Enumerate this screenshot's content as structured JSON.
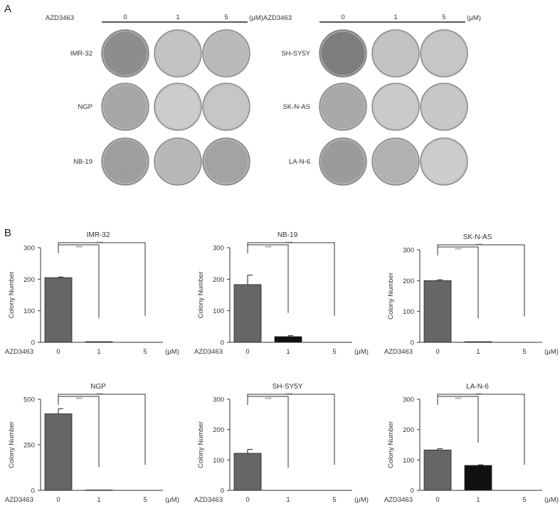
{
  "panel_a": {
    "label": "A",
    "groups": [
      {
        "drug": "AZD3463",
        "doses": [
          "0",
          "1",
          "5"
        ],
        "unit": "(μM)",
        "cell_lines": [
          "IMR-32",
          "NGP",
          "NB-19"
        ],
        "dish_intensity": [
          [
            0.78,
            0.3,
            0.38
          ],
          [
            0.55,
            0.22,
            0.28
          ],
          [
            0.62,
            0.4,
            0.58
          ]
        ]
      },
      {
        "drug": "AZD3463",
        "doses": [
          "0",
          "1",
          "5"
        ],
        "unit": "(μM)",
        "cell_lines": [
          "SH-SY5Y",
          "SK-N-AS",
          "LA-N-6"
        ],
        "dish_intensity": [
          [
            0.92,
            0.3,
            0.28
          ],
          [
            0.52,
            0.24,
            0.26
          ],
          [
            0.65,
            0.45,
            0.22
          ]
        ]
      }
    ]
  },
  "panel_b": {
    "label": "B"
  },
  "chart_data": [
    {
      "type": "bar",
      "title": "IMR-32",
      "ylabel": "Colony Number",
      "xlabel": "AZD3463",
      "unit": "(μM)",
      "categories": [
        "0",
        "1",
        "5"
      ],
      "values": [
        205,
        2,
        0
      ],
      "errors": [
        2,
        0,
        0
      ],
      "ylim": [
        0,
        300
      ],
      "yticks": [
        0,
        100,
        200,
        300
      ],
      "bar_colors": [
        "#666666",
        "#111111",
        "#111111"
      ],
      "significance": [
        "***",
        "***"
      ]
    },
    {
      "type": "bar",
      "title": "NB-19",
      "ylabel": "Colony Number",
      "xlabel": "AZD3463",
      "unit": "(μM)",
      "categories": [
        "0",
        "1",
        "5"
      ],
      "values": [
        183,
        18,
        0
      ],
      "errors": [
        30,
        3,
        0
      ],
      "ylim": [
        0,
        300
      ],
      "yticks": [
        0,
        100,
        200,
        300
      ],
      "bar_colors": [
        "#666666",
        "#111111",
        "#111111"
      ],
      "significance": [
        "***",
        "***"
      ]
    },
    {
      "type": "bar",
      "title": "SK-N-AS",
      "ylabel": "Colony Number",
      "xlabel": "AZD3463",
      "unit": "(μM)",
      "categories": [
        "0",
        "1",
        "5"
      ],
      "values": [
        200,
        2,
        0
      ],
      "errors": [
        3,
        0,
        0
      ],
      "ylim": [
        0,
        300
      ],
      "yticks": [
        0,
        100,
        200,
        300
      ],
      "bar_colors": [
        "#666666",
        "#111111",
        "#111111"
      ],
      "significance": [
        "***",
        "***"
      ]
    },
    {
      "type": "bar",
      "title": "NGP",
      "ylabel": "Colony Number",
      "xlabel": "AZD3463",
      "unit": "(μM)",
      "categories": [
        "0",
        "1",
        "5"
      ],
      "values": [
        420,
        2,
        0
      ],
      "errors": [
        28,
        0,
        0
      ],
      "ylim": [
        0,
        500
      ],
      "yticks": [
        0,
        250,
        500
      ],
      "bar_colors": [
        "#666666",
        "#111111",
        "#111111"
      ],
      "significance": [
        "***",
        "***"
      ]
    },
    {
      "type": "bar",
      "title": "SH-SY5Y",
      "ylabel": "Colony Number",
      "xlabel": "AZD3463",
      "unit": "(μM)",
      "categories": [
        "0",
        "1",
        "5"
      ],
      "values": [
        122,
        0,
        0
      ],
      "errors": [
        13,
        0,
        0
      ],
      "ylim": [
        0,
        300
      ],
      "yticks": [
        0,
        100,
        200,
        300
      ],
      "bar_colors": [
        "#666666",
        "#111111",
        "#111111"
      ],
      "significance": [
        "***",
        "***"
      ]
    },
    {
      "type": "bar",
      "title": "LA-N-6",
      "ylabel": "Colony Number",
      "xlabel": "AZD3463",
      "unit": "(μM)",
      "categories": [
        "0",
        "1",
        "5"
      ],
      "values": [
        133,
        82,
        0
      ],
      "errors": [
        4,
        2,
        0
      ],
      "ylim": [
        0,
        300
      ],
      "yticks": [
        0,
        100,
        200,
        300
      ],
      "bar_colors": [
        "#666666",
        "#111111",
        "#111111"
      ],
      "significance": [
        "***",
        "***"
      ]
    }
  ]
}
